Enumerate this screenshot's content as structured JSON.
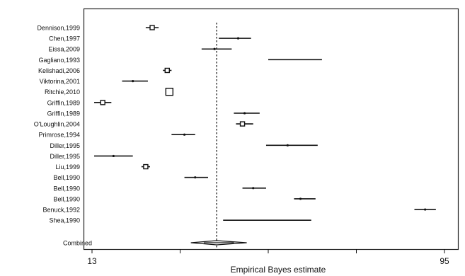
{
  "chart_data": {
    "type": "forest",
    "xlabel": "Empirical Bayes estimate",
    "x_tick_labels": [
      "13",
      "95"
    ],
    "xlim": [
      13,
      95
    ],
    "reference_line": 42,
    "studies": [
      {
        "label": "Dennison,1999",
        "estimate": 27,
        "ci": [
          25.5,
          28.5
        ],
        "marker": "square"
      },
      {
        "label": "Chen,1997",
        "estimate": 47,
        "ci": [
          42.5,
          50
        ],
        "marker": "dot"
      },
      {
        "label": "Eissa,2009",
        "estimate": 41.5,
        "ci": [
          38.5,
          45.5
        ],
        "marker": "dot"
      },
      {
        "label": "Gagliano,1993",
        "estimate": 57,
        "ci": [
          54,
          66.5
        ],
        "marker": "none"
      },
      {
        "label": "Kelishadi,2006",
        "estimate": 30.5,
        "ci": [
          29.5,
          31.5
        ],
        "marker": "square"
      },
      {
        "label": "Viktorina,2001",
        "estimate": 22.5,
        "ci": [
          20,
          26
        ],
        "marker": "dot"
      },
      {
        "label": "Ritchie,2010",
        "estimate": 31,
        "ci": [
          31,
          31
        ],
        "marker": "square"
      },
      {
        "label": "Griffin,1989",
        "estimate": 15.5,
        "ci": [
          13.5,
          17.5
        ],
        "marker": "square"
      },
      {
        "label": "Griffin,1989",
        "estimate": 48.5,
        "ci": [
          46,
          52
        ],
        "marker": "dot"
      },
      {
        "label": "O'Loughlin,2004",
        "estimate": 48,
        "ci": [
          46.5,
          50.5
        ],
        "marker": "square"
      },
      {
        "label": "Primrose,1994",
        "estimate": 34.5,
        "ci": [
          31.5,
          37
        ],
        "marker": "dot"
      },
      {
        "label": "Diller,1995",
        "estimate": 58.5,
        "ci": [
          53.5,
          65.5
        ],
        "marker": "dot"
      },
      {
        "label": "Diller,1995",
        "estimate": 18,
        "ci": [
          13.5,
          22.5
        ],
        "marker": "dot"
      },
      {
        "label": "Liu,1999",
        "estimate": 25.5,
        "ci": [
          24.5,
          26.5
        ],
        "marker": "square"
      },
      {
        "label": "Bell,1990",
        "estimate": 37,
        "ci": [
          34.5,
          40
        ],
        "marker": "dot"
      },
      {
        "label": "Bell,1990",
        "estimate": 50.5,
        "ci": [
          48,
          53.5
        ],
        "marker": "dot"
      },
      {
        "label": "Bell,1990",
        "estimate": 61.5,
        "ci": [
          60,
          65
        ],
        "marker": "dot"
      },
      {
        "label": "Benuck,1992",
        "estimate": 90.5,
        "ci": [
          88,
          93
        ],
        "marker": "dot"
      },
      {
        "label": "Shea,1990",
        "estimate": 55,
        "ci": [
          43.5,
          64
        ],
        "marker": "none"
      }
    ],
    "combined": {
      "label": "Combined",
      "estimate": 42,
      "ci": [
        36,
        49
      ],
      "marker": "diamond"
    }
  }
}
